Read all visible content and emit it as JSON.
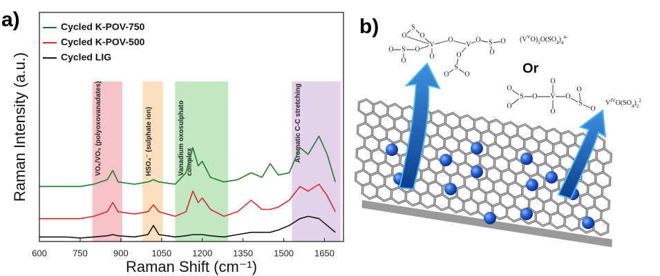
{
  "chart_data": {
    "type": "line",
    "panel_label": "a)",
    "x_label": "Raman Shift (cm⁻¹)",
    "y_label": "Raman Intensity (a.u.)",
    "x": [
      600,
      650,
      700,
      750,
      800,
      850,
      870,
      890,
      950,
      1000,
      1020,
      1040,
      1100,
      1140,
      1165,
      1185,
      1200,
      1230,
      1280,
      1330,
      1380,
      1420,
      1450,
      1480,
      1520,
      1560,
      1590,
      1630,
      1660,
      1690
    ],
    "series": [
      {
        "name": "Cycled K-POV-750",
        "color": "#1e7b2e",
        "values": [
          24,
          24,
          24,
          24,
          25,
          27,
          31,
          26,
          25,
          26,
          27,
          26,
          25,
          30,
          41,
          33,
          35,
          28,
          26,
          27,
          30,
          28,
          34,
          29,
          30,
          41,
          38,
          46,
          38,
          26
        ]
      },
      {
        "name": "Cycled K-POV-500",
        "color": "#d42a2a",
        "values": [
          10,
          10,
          10,
          10,
          11,
          13,
          17,
          13,
          12,
          13,
          16,
          13,
          11,
          13,
          22,
          17,
          19,
          14,
          11,
          13,
          18,
          14,
          14,
          15,
          18,
          24,
          22,
          25,
          20,
          13
        ]
      },
      {
        "name": "Cycled LIG",
        "color": "#111111",
        "values": [
          2,
          2,
          2,
          1.5,
          2,
          2.5,
          3,
          2.5,
          2,
          3,
          7,
          3,
          2,
          2.5,
          3,
          3,
          3,
          2.5,
          2,
          3,
          4,
          4,
          4,
          5,
          7,
          10,
          11,
          10,
          7,
          4
        ]
      }
    ],
    "regions": [
      {
        "label": "VO₆/VO₅ (polyoxovanadates)",
        "range": [
          795,
          905
        ],
        "color": "#f3a9b0"
      },
      {
        "label": "HSO₄⁻ (sulphate ion)",
        "range": [
          980,
          1055
        ],
        "color": "#fbd2a3"
      },
      {
        "label": [
          "Vanadium oxosulphato",
          "complex"
        ],
        "range": [
          1100,
          1295
        ],
        "color": "#a9dba9"
      },
      {
        "label": "Aromatic C-C stretching",
        "range": [
          1530,
          1710
        ],
        "color": "#d7bfe0"
      }
    ],
    "xlim": [
      600,
      1720
    ],
    "xticks": [
      600,
      750,
      900,
      1050,
      1200,
      1350,
      1500,
      1650
    ],
    "ylim": [
      0,
      100
    ],
    "legend": "upper left"
  },
  "diagram": {
    "panel_label": "b)",
    "structure1": {
      "atoms": [
        "S",
        "O",
        "O",
        "V",
        "O",
        "V",
        "O",
        "S",
        "O",
        "O",
        "O",
        "S",
        "O",
        "O",
        "O",
        "O",
        "S",
        "O",
        "O"
      ],
      "formula": [
        "(V",
        "V",
        "O)",
        "2",
        "O(SO",
        "4",
        ")",
        "4",
        "4-"
      ]
    },
    "or_label": "Or",
    "structure2": {
      "atoms": [
        "O",
        "S",
        "O",
        "O",
        "V",
        "O",
        "O",
        "O",
        "S",
        "O",
        "O"
      ],
      "formula": [
        "V",
        "IV",
        "O(SO",
        "4",
        ")",
        "2",
        "2"
      ]
    }
  }
}
